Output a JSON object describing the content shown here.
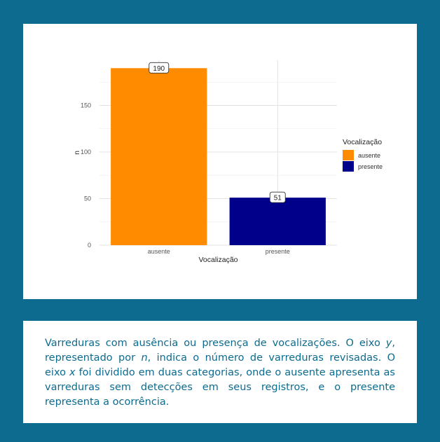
{
  "colors": {
    "frame": "#0d6b8f",
    "ausente": "#ff8c00",
    "presente": "#00008b",
    "caption_text": "#0d6b8f"
  },
  "chart_data": {
    "type": "bar",
    "categories": [
      "ausente",
      "presente"
    ],
    "values": [
      190,
      51
    ],
    "data_labels": [
      "190",
      "51"
    ],
    "xlabel": "Vocalização",
    "ylabel": "n",
    "ylim": [
      0,
      200
    ],
    "yticks": [
      0,
      50,
      100,
      150
    ],
    "grid": true,
    "legend": {
      "title": "Vocalização",
      "placement": "right",
      "entries": [
        {
          "label": "ausente",
          "color": "#ff8c00"
        },
        {
          "label": "presente",
          "color": "#00008b"
        }
      ]
    }
  },
  "caption": {
    "part1": "Varreduras com ausência ou presença de vocalizações. O eixo ",
    "y_var": "y",
    "part2": ", representado por ",
    "n_var": "n",
    "part3": ", indica o número de varreduras revisadas. O eixo ",
    "x_var": "x",
    "part4": " foi dividido em duas categorias, onde o ausente apresenta as varreduras sem detecções em seus registros, e o presente representa a ocorrência."
  }
}
